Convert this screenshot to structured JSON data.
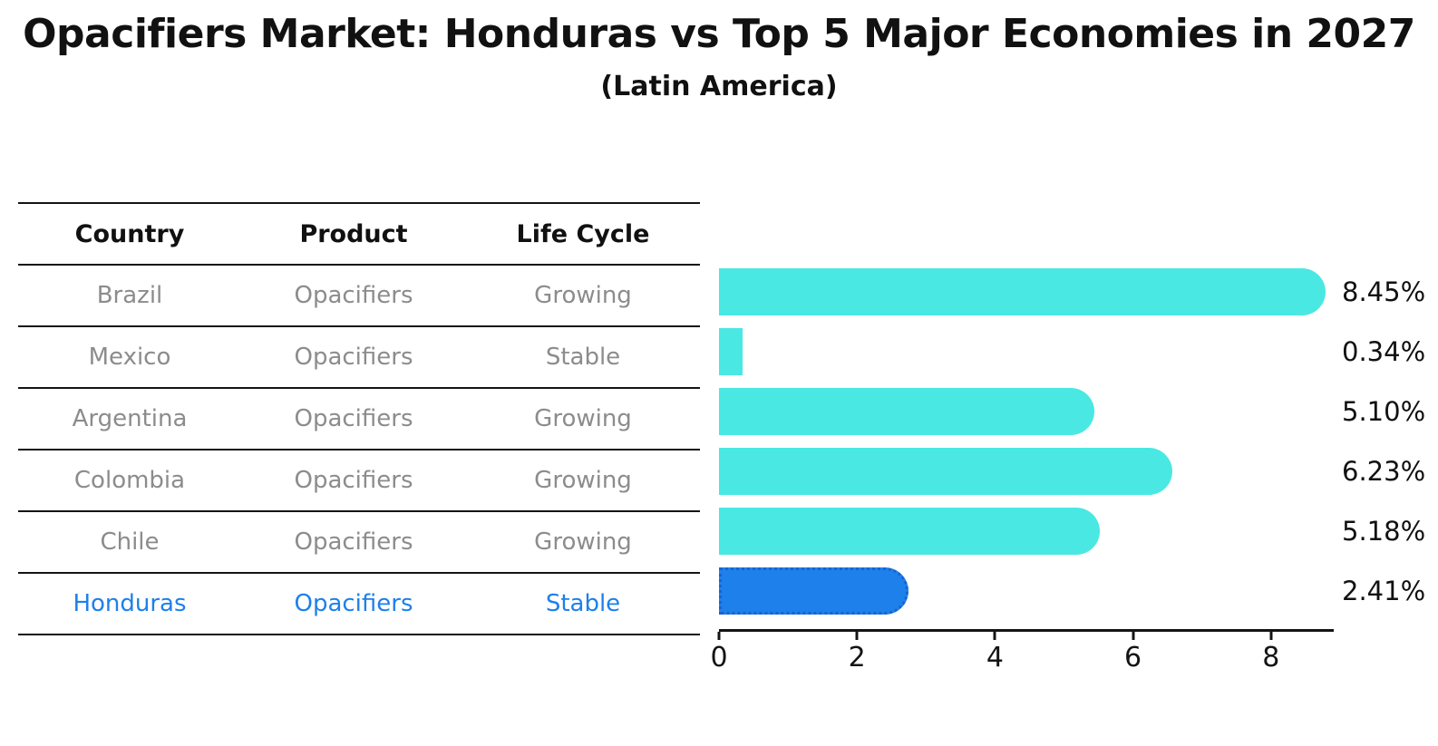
{
  "page": {
    "title": "Opacifiers Market: Honduras vs Top 5 Major Economies in 2027",
    "subtitle": "(Latin America)"
  },
  "table": {
    "headers": [
      "Country",
      "Product",
      "Life Cycle"
    ],
    "rows": [
      {
        "country": "Brazil",
        "product": "Opacifiers",
        "life_cycle": "Growing",
        "highlight": false
      },
      {
        "country": "Mexico",
        "product": "Opacifiers",
        "life_cycle": "Stable",
        "highlight": false
      },
      {
        "country": "Argentina",
        "product": "Opacifiers",
        "life_cycle": "Growing",
        "highlight": false
      },
      {
        "country": "Colombia",
        "product": "Opacifiers",
        "life_cycle": "Growing",
        "highlight": false
      },
      {
        "country": "Chile",
        "product": "Opacifiers",
        "life_cycle": "Growing",
        "highlight": false
      },
      {
        "country": "Honduras",
        "product": "Opacifiers",
        "life_cycle": "Stable",
        "highlight": true
      }
    ]
  },
  "chart_data": {
    "type": "bar",
    "orientation": "horizontal",
    "title": "Opacifiers Market: Honduras vs Top 5 Major Economies in 2027",
    "subtitle": "(Latin America)",
    "categories": [
      "Brazil",
      "Mexico",
      "Argentina",
      "Colombia",
      "Chile",
      "Honduras"
    ],
    "values": [
      8.45,
      0.34,
      5.1,
      6.23,
      5.18,
      2.41
    ],
    "value_labels": [
      "8.45%",
      "0.34%",
      "5.10%",
      "6.23%",
      "5.18%",
      "2.41%"
    ],
    "xlabel": "",
    "ylabel": "",
    "xlim": [
      0,
      8.9
    ],
    "x_ticks": [
      0,
      2,
      4,
      6,
      8
    ],
    "grid": false,
    "legend": "none",
    "highlight_index": 5,
    "colors": {
      "bar": "#4ae8e3",
      "highlight_bar": "#1e80eb",
      "highlight_border": "#1863cf",
      "highlight_text": "#1e80ea",
      "table_text": "#8c8c8c",
      "axis_text": "#141414"
    }
  }
}
